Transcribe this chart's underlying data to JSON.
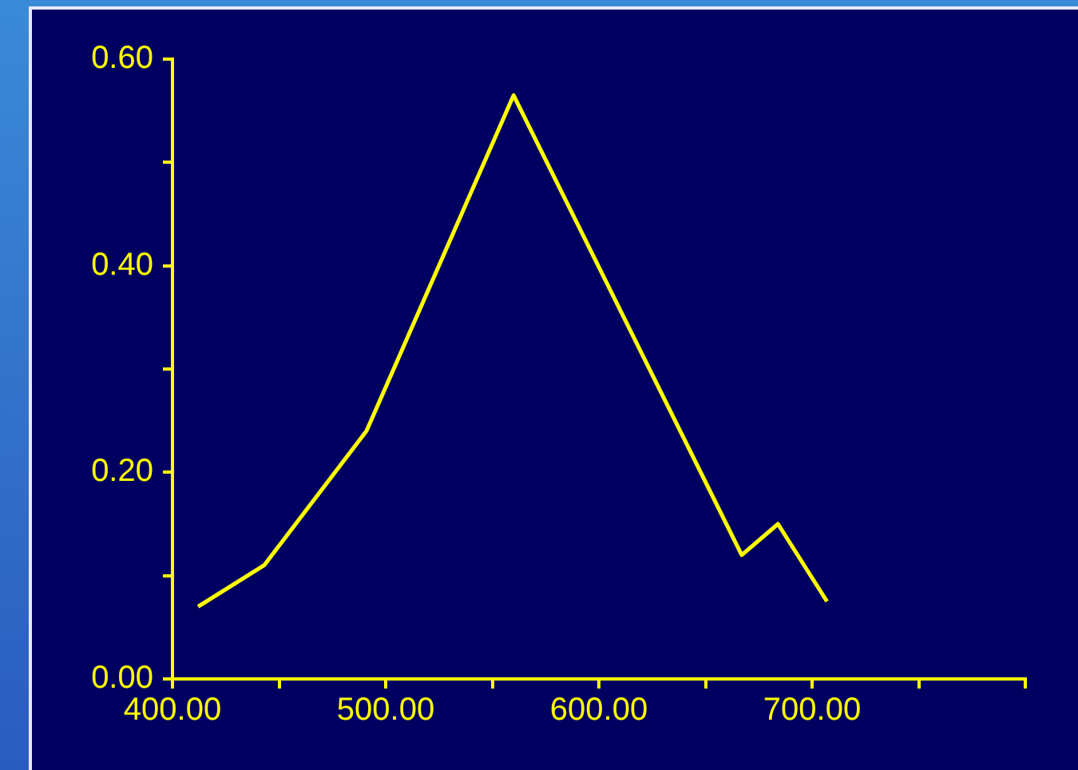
{
  "chart_data": {
    "type": "line",
    "x": [
      412,
      443,
      491,
      560,
      667,
      684,
      707
    ],
    "series": [
      {
        "color": "#ffff00",
        "values": [
          0.07,
          0.11,
          0.24,
          0.565,
          0.12,
          0.15,
          0.075
        ]
      }
    ],
    "xlim": [
      400,
      800
    ],
    "xticks": [
      {
        "value": 400,
        "label": "400.00"
      },
      {
        "value": 450,
        "label": null
      },
      {
        "value": 500,
        "label": "500.00"
      },
      {
        "value": 550,
        "label": null
      },
      {
        "value": 600,
        "label": "600.00"
      },
      {
        "value": 650,
        "label": null
      },
      {
        "value": 700,
        "label": "700.00"
      },
      {
        "value": 750,
        "label": null
      },
      {
        "value": 800,
        "label": null
      }
    ],
    "ylim": [
      0,
      0.6
    ],
    "yticks": [
      {
        "value": 0,
        "label": "0.00"
      },
      {
        "value": 0.1,
        "label": null
      },
      {
        "value": 0.2,
        "label": "0.20"
      },
      {
        "value": 0.3,
        "label": null
      },
      {
        "value": 0.4,
        "label": "0.40"
      },
      {
        "value": 0.5,
        "label": null
      },
      {
        "value": 0.6,
        "label": "0.60"
      }
    ],
    "grid": false,
    "legend": false,
    "marker": "none",
    "line_style": "solid"
  }
}
